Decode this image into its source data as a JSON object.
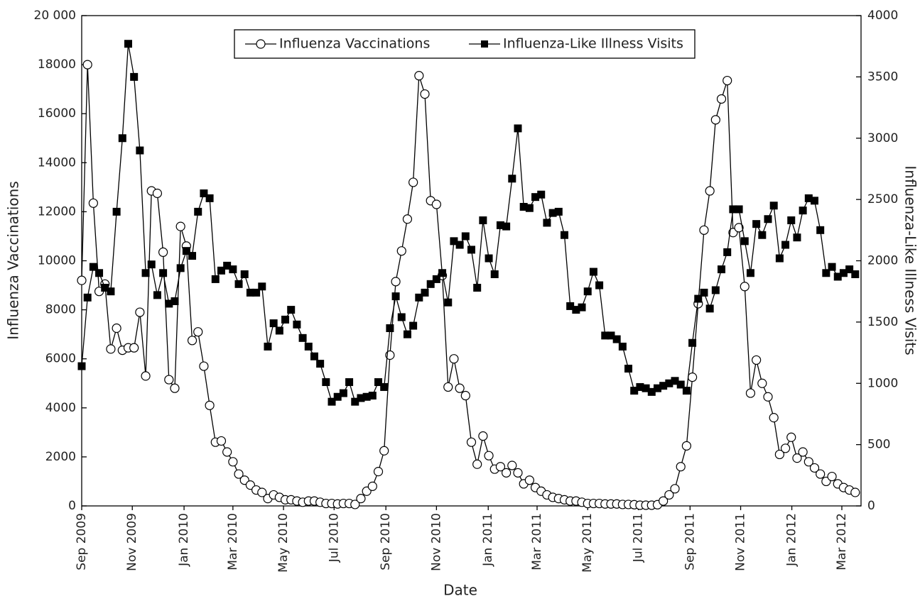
{
  "chart_data": {
    "type": "line",
    "x_label": "Date",
    "y_label": "Influenza Vaccinations",
    "y2_label": "Influenza-Like Illness Visits",
    "legend": "upper center",
    "xlim": [
      0,
      134
    ],
    "xticks": [
      {
        "value": 0,
        "label": "Sep 2009"
      },
      {
        "value": 8.7,
        "label": "Nov 2009"
      },
      {
        "value": 17.6,
        "label": "Jan 2010"
      },
      {
        "value": 26,
        "label": "Mar 2010"
      },
      {
        "value": 34.7,
        "label": "May 2010"
      },
      {
        "value": 43.4,
        "label": "Jul 2010"
      },
      {
        "value": 52.3,
        "label": "Sep 2010"
      },
      {
        "value": 61,
        "label": "Nov 2010"
      },
      {
        "value": 69.9,
        "label": "Jan 2011"
      },
      {
        "value": 78.3,
        "label": "Mar 2011"
      },
      {
        "value": 87,
        "label": "May 2011"
      },
      {
        "value": 95.7,
        "label": "Jul 2011"
      },
      {
        "value": 104.6,
        "label": "Sep 2011"
      },
      {
        "value": 113.3,
        "label": "Nov 2011"
      },
      {
        "value": 122.1,
        "label": "Jan 2012"
      },
      {
        "value": 130.7,
        "label": "Mar 2012"
      }
    ],
    "ylim": [
      0,
      20000
    ],
    "yticks": [
      0,
      2000,
      4000,
      6000,
      8000,
      10000,
      12000,
      14000,
      16000,
      18000,
      {
        "value": 20000,
        "label": "20 000"
      }
    ],
    "y2lim": [
      0,
      4000
    ],
    "y2ticks": [
      0,
      500,
      1000,
      1500,
      2000,
      2500,
      3000,
      3500,
      4000
    ],
    "series": [
      {
        "name": "Influenza Vaccinations",
        "color": "#000000",
        "marker": "circle",
        "values": [
          9200,
          18000,
          12350,
          8750,
          9050,
          6400,
          7250,
          6350,
          6450,
          6450,
          7900,
          5300,
          12850,
          12750,
          10350,
          5150,
          4800,
          11400,
          10600,
          6750,
          7100,
          5700,
          4100,
          2600,
          2650,
          2200,
          1800,
          1300,
          1050,
          850,
          650,
          550,
          300,
          450,
          350,
          250,
          250,
          200,
          150,
          200,
          200,
          150,
          100,
          100,
          80,
          100,
          100,
          60,
          300,
          600,
          800,
          1400,
          2250,
          6150,
          9150,
          10400,
          11700,
          13200,
          17550,
          16800,
          12450,
          12300,
          9400,
          4850,
          6000,
          4800,
          4500,
          2600,
          1700,
          2850,
          2050,
          1500,
          1600,
          1350,
          1650,
          1350,
          900,
          1050,
          750,
          600,
          450,
          350,
          300,
          250,
          200,
          200,
          150,
          100,
          100,
          100,
          80,
          80,
          80,
          60,
          60,
          50,
          30,
          30,
          30,
          50,
          200,
          450,
          700,
          1600,
          2450,
          5250,
          8250,
          11250,
          12850,
          15750,
          16600,
          17350,
          11150,
          11350,
          8950,
          4600,
          5950,
          5000,
          4450,
          3600,
          2100,
          2350,
          2800,
          1950,
          2200,
          1800,
          1550,
          1300,
          1000,
          1200,
          900,
          750,
          650,
          550
        ]
      },
      {
        "name": "Influenza-Like Illness Visits",
        "color": "#000000",
        "marker": "square",
        "axis": "y2",
        "values": [
          1140,
          1700,
          1950,
          1900,
          1780,
          1750,
          2400,
          3000,
          3770,
          3500,
          2900,
          1900,
          1970,
          1720,
          1900,
          1650,
          1670,
          1940,
          2080,
          2040,
          2400,
          2550,
          2510,
          1850,
          1920,
          1960,
          1930,
          1810,
          1890,
          1740,
          1740,
          1790,
          1300,
          1490,
          1430,
          1520,
          1600,
          1480,
          1370,
          1300,
          1220,
          1160,
          1010,
          850,
          890,
          920,
          1010,
          850,
          880,
          890,
          900,
          1010,
          970,
          1450,
          1710,
          1540,
          1400,
          1470,
          1700,
          1740,
          1810,
          1850,
          1900,
          1660,
          2160,
          2130,
          2200,
          2090,
          1780,
          2330,
          2020,
          1890,
          2290,
          2280,
          2670,
          3080,
          2440,
          2430,
          2520,
          2540,
          2310,
          2390,
          2400,
          2210,
          1630,
          1600,
          1620,
          1750,
          1910,
          1800,
          1390,
          1390,
          1360,
          1300,
          1120,
          940,
          970,
          960,
          930,
          960,
          980,
          1000,
          1020,
          990,
          940,
          1330,
          1690,
          1740,
          1610,
          1760,
          1930,
          2070,
          2420,
          2420,
          2160,
          1900,
          2300,
          2210,
          2340,
          2450,
          2020,
          2130,
          2330,
          2190,
          2410,
          2510,
          2490,
          2250,
          1900,
          1950,
          1870,
          1900,
          1930,
          1890
        ]
      }
    ]
  }
}
